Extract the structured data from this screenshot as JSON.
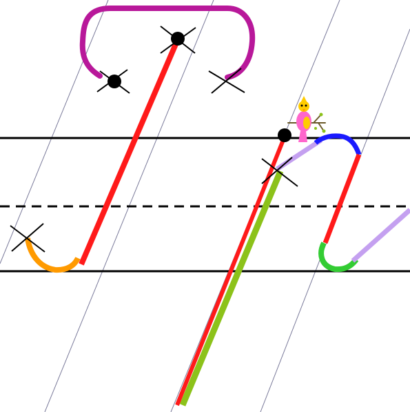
{
  "colors": {
    "background": "#ffffff",
    "ruling": "#000000",
    "slant_guide": "#7a7a9a",
    "stroke_red": "#ff1a1a",
    "stroke_magenta": "#b8189a",
    "stroke_orange": "#ff9a00",
    "stroke_lime": "#8cc21a",
    "stroke_lavender": "#c4a0f0",
    "stroke_blue": "#1a1aff",
    "stroke_green": "#33cc33",
    "marker": "#000000",
    "bird_body": "#ff66cc",
    "bird_head": "#ffcc00",
    "branch": "#6b5a2a"
  },
  "icons": {
    "start_dot": "filled-circle",
    "cross_mark": "x-cross",
    "mascot": "bird-on-branch-icon"
  }
}
